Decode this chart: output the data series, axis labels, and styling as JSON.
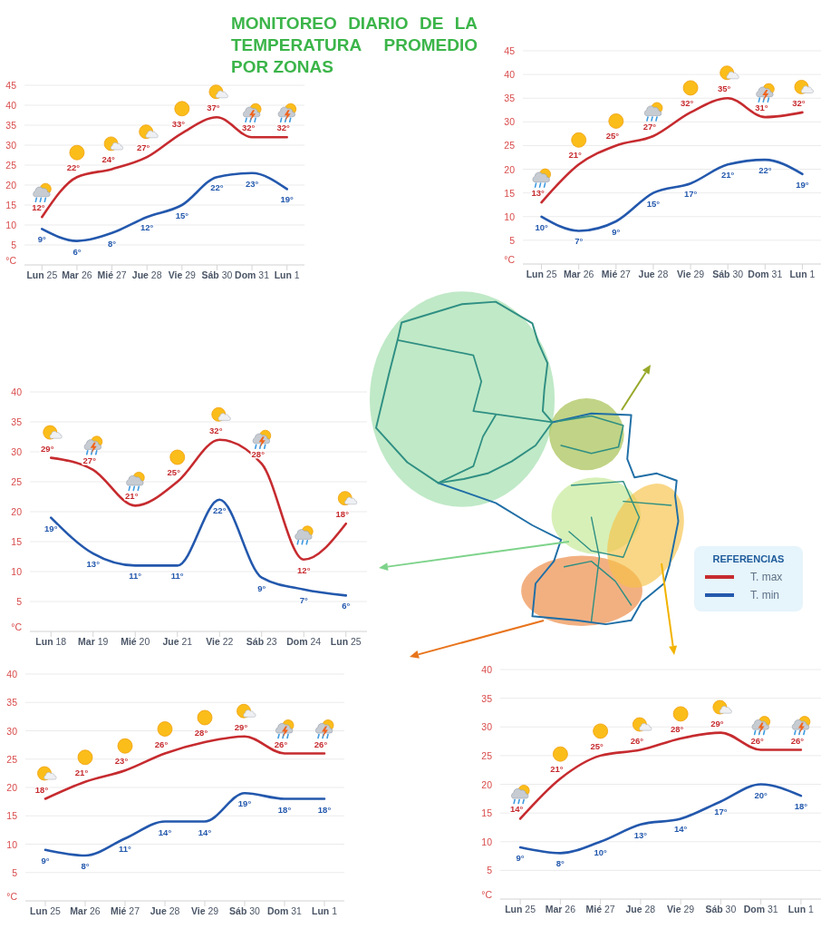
{
  "chart_data": [
    {
      "type": "line",
      "title": "MONITOREO DIARIO DE LA TEMPERATURA PROMEDIO POR ZONAS",
      "ylabel": "°C",
      "categories": [
        "Lun 25",
        "Mar 26",
        "Mié 27",
        "Jue 28",
        "Vie 29",
        "Sáb 30",
        "Dom 31",
        "Lun 1"
      ],
      "series": [
        {
          "color": "#c62b2f",
          "values": [
            12,
            22,
            24,
            27,
            33,
            37,
            32,
            32
          ],
          "value_labels": [
            "12°",
            "22°",
            "24°",
            "27°",
            "33°",
            "37°",
            "32°",
            "32°"
          ]
        },
        {
          "color": "#2358ad",
          "values": [
            9,
            6,
            8,
            12,
            15,
            22,
            23,
            19
          ],
          "value_labels": [
            "9°",
            "6°",
            "8°",
            "12°",
            "15°",
            "22°",
            "23°",
            "19°"
          ]
        }
      ],
      "ylim": [
        0,
        45
      ],
      "yticks": [
        5,
        10,
        15,
        20,
        25,
        30,
        35,
        40,
        45
      ],
      "grid": "y",
      "marker": "none",
      "line_style": "solid"
    },
    {
      "type": "line",
      "ylabel": "°C",
      "categories": [
        "Lun 25",
        "Mar 26",
        "Mié 27",
        "Jue 28",
        "Vie 29",
        "Sáb 30",
        "Dom 31",
        "Lun 1"
      ],
      "series": [
        {
          "color": "#c62b2f",
          "values": [
            13,
            21,
            25,
            27,
            32,
            35,
            31,
            32
          ],
          "value_labels": [
            "13°",
            "21°",
            "25°",
            "27°",
            "32°",
            "35°",
            "31°",
            "32°"
          ]
        },
        {
          "color": "#2358ad",
          "values": [
            10,
            7,
            9,
            15,
            17,
            21,
            22,
            19
          ],
          "value_labels": [
            "10°",
            "7°",
            "9°",
            "15°",
            "17°",
            "21°",
            "22°",
            "19°"
          ]
        }
      ],
      "ylim": [
        0,
        45
      ],
      "yticks": [
        5,
        10,
        15,
        20,
        25,
        30,
        35,
        40,
        45
      ],
      "grid": "y",
      "marker": "none",
      "line_style": "solid"
    },
    {
      "type": "line",
      "ylabel": "°C",
      "categories": [
        "Lun 18",
        "Mar 19",
        "Mié 20",
        "Jue 21",
        "Vie 22",
        "Sáb 23",
        "Dom 24",
        "Lun 25"
      ],
      "series": [
        {
          "color": "#c62b2f",
          "values": [
            29,
            27,
            21,
            25,
            32,
            28,
            12,
            18
          ],
          "value_labels": [
            "29°",
            "27°",
            "21°",
            "25°",
            "32°",
            "28°",
            "12°",
            "18°"
          ]
        },
        {
          "color": "#2358ad",
          "values": [
            19,
            13,
            11,
            11,
            22,
            9,
            7,
            6
          ],
          "value_labels": [
            "19°",
            "13°",
            "11°",
            "11°",
            "22°",
            "9°",
            "7°",
            "6°"
          ]
        }
      ],
      "ylim": [
        0,
        40
      ],
      "yticks": [
        5,
        10,
        15,
        20,
        25,
        30,
        35,
        40
      ],
      "grid": "y",
      "marker": "none",
      "line_style": "solid"
    },
    {
      "type": "line",
      "ylabel": "°C",
      "categories": [
        "Lun 25",
        "Mar 26",
        "Mié 27",
        "Jue 28",
        "Vie 29",
        "Sáb 30",
        "Dom 31",
        "Lun 1"
      ],
      "series": [
        {
          "color": "#c62b2f",
          "values": [
            18,
            21,
            23,
            26,
            28,
            29,
            26,
            26
          ],
          "value_labels": [
            "18°",
            "21°",
            "23°",
            "26°",
            "28°",
            "29°",
            "26°",
            "26°"
          ]
        },
        {
          "color": "#2358ad",
          "values": [
            9,
            8,
            11,
            14,
            14,
            19,
            18,
            18
          ],
          "value_labels": [
            "9°",
            "8°",
            "11°",
            "14°",
            "14°",
            "19°",
            "18°",
            "18°"
          ]
        }
      ],
      "ylim": [
        0,
        40
      ],
      "yticks": [
        5,
        10,
        15,
        20,
        25,
        30,
        35,
        40
      ],
      "grid": "y",
      "marker": "none",
      "line_style": "solid"
    },
    {
      "type": "line",
      "ylabel": "°C",
      "legend_title": "REFERENCIAS",
      "categories": [
        "Lun 25",
        "Mar 26",
        "Mié 27",
        "Jue 28",
        "Vie 29",
        "Sáb 30",
        "Dom 31",
        "Lun 1"
      ],
      "series": [
        {
          "name": "T. max",
          "color": "#c62b2f",
          "values": [
            14,
            21,
            25,
            26,
            28,
            29,
            26,
            26
          ],
          "value_labels": [
            "14°",
            "21°",
            "25°",
            "26°",
            "28°",
            "29°",
            "26°",
            "26°"
          ]
        },
        {
          "name": "T. min",
          "color": "#2358ad",
          "values": [
            9,
            8,
            10,
            13,
            14,
            17,
            20,
            18
          ],
          "value_labels": [
            "9°",
            "8°",
            "10°",
            "13°",
            "14°",
            "17°",
            "20°",
            "18°"
          ]
        }
      ],
      "ylim": [
        0,
        40
      ],
      "yticks": [
        5,
        10,
        15,
        20,
        25,
        30,
        35,
        40
      ],
      "grid": "y",
      "marker": "none",
      "line_style": "solid",
      "legend": "top right"
    }
  ]
}
